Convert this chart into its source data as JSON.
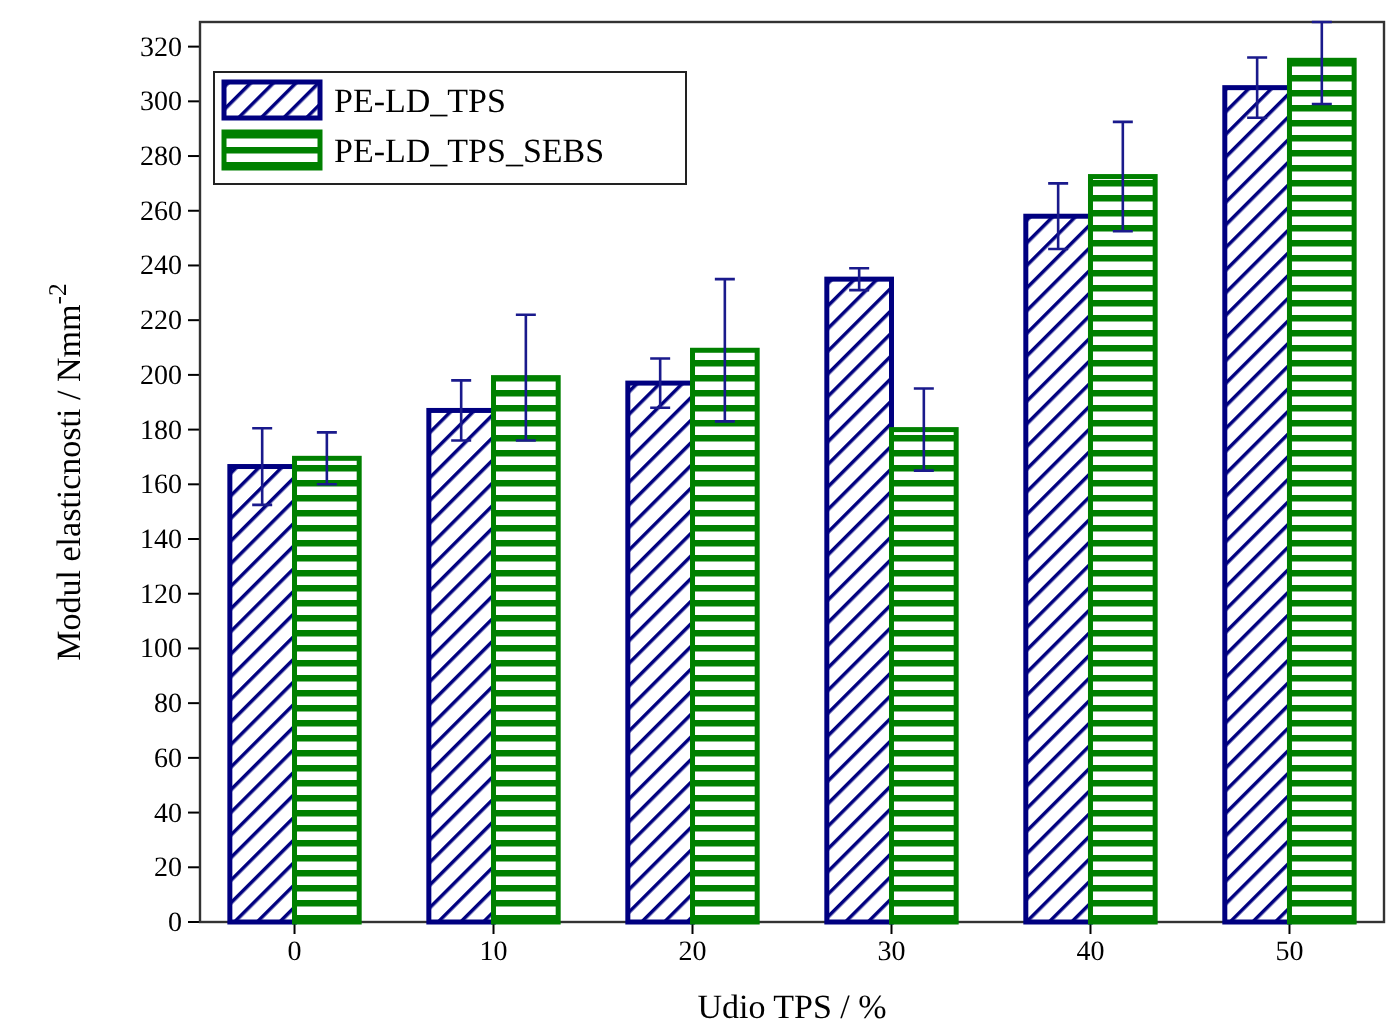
{
  "chart_data": {
    "type": "bar",
    "xlabel": "Udio TPS / %",
    "ylabel": "Modul elasticnosti / Nmm$^{-2}$",
    "categories": [
      "0",
      "10",
      "20",
      "30",
      "40",
      "50"
    ],
    "series": [
      {
        "name": "PE-LD_TPS",
        "color": "#000080",
        "values": [
          166.5,
          187,
          197,
          235,
          258,
          305
        ],
        "errors": [
          14,
          11,
          9,
          4,
          12,
          11
        ]
      },
      {
        "name": "PE-LD_TPS_SEBS",
        "color": "#008000",
        "values": [
          169.5,
          199,
          209,
          180,
          272.5,
          315
        ],
        "errors": [
          9.5,
          23,
          26,
          15,
          20,
          [
            299,
            329
          ]
        ]
      }
    ],
    "ylim": [
      0,
      329
    ],
    "yticks": [
      0,
      20,
      40,
      60,
      80,
      100,
      120,
      140,
      160,
      180,
      200,
      220,
      240,
      260,
      280,
      300,
      320
    ],
    "legend": "top left"
  }
}
